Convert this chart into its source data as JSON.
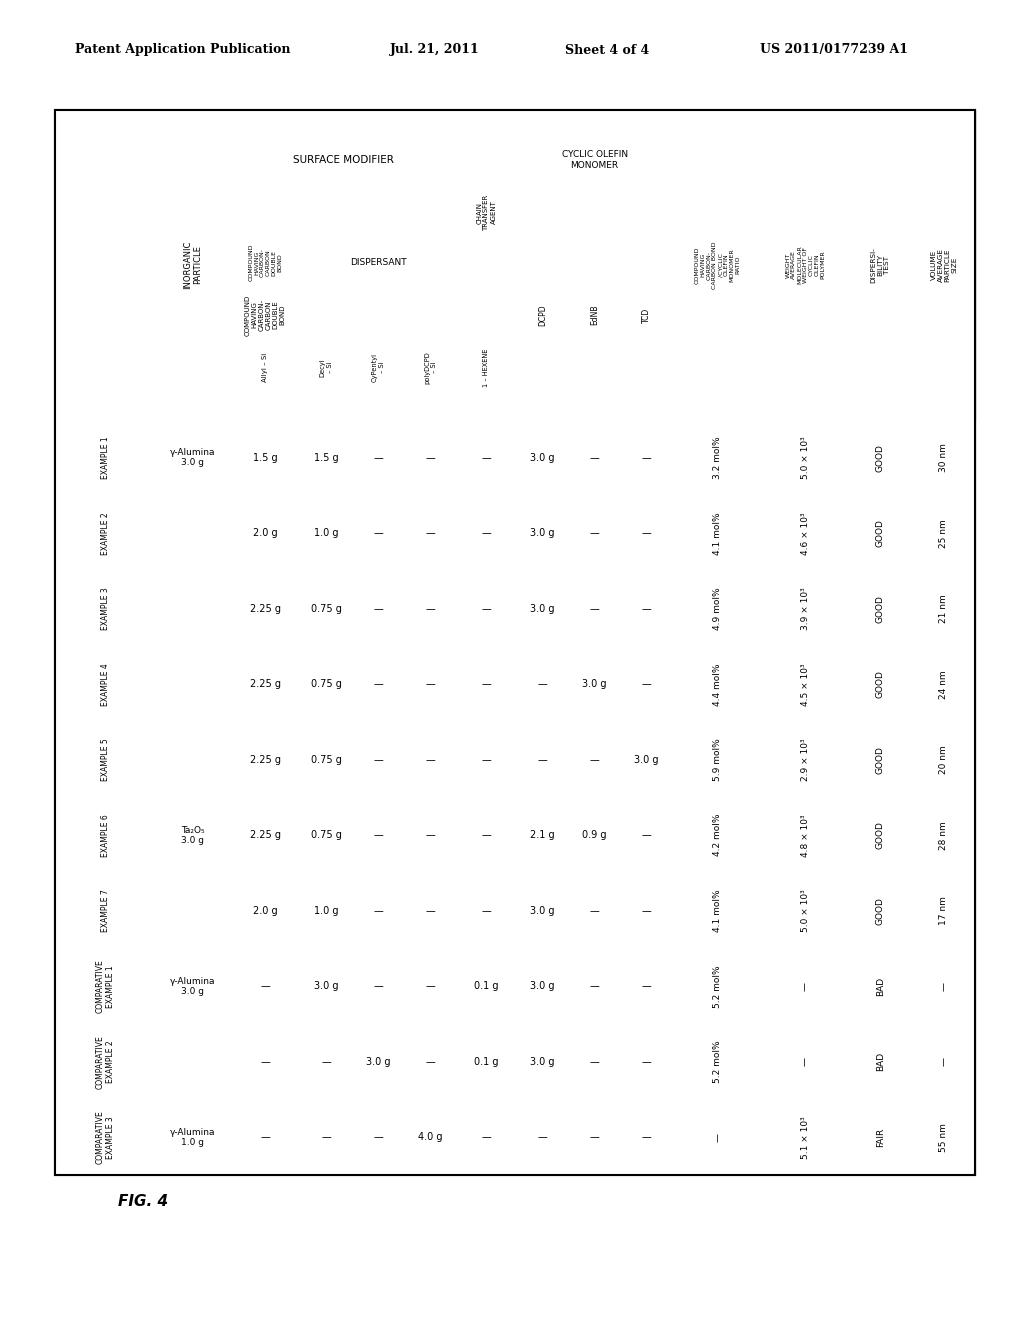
{
  "header_line1": "Patent Application Publication",
  "header_date": "Jul. 21, 2011",
  "header_sheet": "Sheet 4 of 4",
  "header_patent": "US 2011/0177239 A1",
  "fig_label": "FIG. 4",
  "rows": [
    {
      "label": "EXAMPLE 1",
      "inorganic": "γ-Alumina\n3.0 g",
      "allyl_si": "1.5 g",
      "decyl_si": "1.5 g",
      "cypentyl_si": "—",
      "polydcpd_si": "—",
      "chain_transfer": "—",
      "dcpd": "3.0 g",
      "ednb": "—",
      "tcd": "—",
      "ratio": "3.2 mol%",
      "mw": "5.0 × 10³",
      "dispersibility": "GOOD",
      "particle_size": "30 nm"
    },
    {
      "label": "EXAMPLE 2",
      "inorganic": "",
      "allyl_si": "2.0 g",
      "decyl_si": "1.0 g",
      "cypentyl_si": "—",
      "polydcpd_si": "—",
      "chain_transfer": "—",
      "dcpd": "3.0 g",
      "ednb": "—",
      "tcd": "—",
      "ratio": "4.1 mol%",
      "mw": "4.6 × 10³",
      "dispersibility": "GOOD",
      "particle_size": "25 nm"
    },
    {
      "label": "EXAMPLE 3",
      "inorganic": "",
      "allyl_si": "2.25 g",
      "decyl_si": "0.75 g",
      "cypentyl_si": "—",
      "polydcpd_si": "—",
      "chain_transfer": "—",
      "dcpd": "3.0 g",
      "ednb": "—",
      "tcd": "—",
      "ratio": "4.9 mol%",
      "mw": "3.9 × 10³",
      "dispersibility": "GOOD",
      "particle_size": "21 nm"
    },
    {
      "label": "EXAMPLE 4",
      "inorganic": "",
      "allyl_si": "2.25 g",
      "decyl_si": "0.75 g",
      "cypentyl_si": "—",
      "polydcpd_si": "—",
      "chain_transfer": "—",
      "dcpd": "—",
      "ednb": "3.0 g",
      "tcd": "—",
      "ratio": "4.4 mol%",
      "mw": "4.5 × 10³",
      "dispersibility": "GOOD",
      "particle_size": "24 nm"
    },
    {
      "label": "EXAMPLE 5",
      "inorganic": "",
      "allyl_si": "2.25 g",
      "decyl_si": "0.75 g",
      "cypentyl_si": "—",
      "polydcpd_si": "—",
      "chain_transfer": "—",
      "dcpd": "—",
      "ednb": "—",
      "tcd": "3.0 g",
      "ratio": "5.9 mol%",
      "mw": "2.9 × 10³",
      "dispersibility": "GOOD",
      "particle_size": "20 nm"
    },
    {
      "label": "EXAMPLE 6",
      "inorganic": "Ta₂O₅\n3.0 g",
      "allyl_si": "2.25 g",
      "decyl_si": "0.75 g",
      "cypentyl_si": "—",
      "polydcpd_si": "—",
      "chain_transfer": "—",
      "dcpd": "2.1 g",
      "ednb": "0.9 g",
      "tcd": "—",
      "ratio": "4.2 mol%",
      "mw": "4.8 × 10³",
      "dispersibility": "GOOD",
      "particle_size": "28 nm"
    },
    {
      "label": "EXAMPLE 7",
      "inorganic": "",
      "allyl_si": "2.0 g",
      "decyl_si": "1.0 g",
      "cypentyl_si": "—",
      "polydcpd_si": "—",
      "chain_transfer": "—",
      "dcpd": "3.0 g",
      "ednb": "—",
      "tcd": "—",
      "ratio": "4.1 mol%",
      "mw": "5.0 × 10³",
      "dispersibility": "GOOD",
      "particle_size": "17 nm"
    },
    {
      "label": "COMPARATIVE\nEXAMPLE 1",
      "inorganic": "γ-Alumina\n3.0 g",
      "allyl_si": "—",
      "decyl_si": "3.0 g",
      "cypentyl_si": "—",
      "polydcpd_si": "—",
      "chain_transfer": "0.1 g",
      "dcpd": "3.0 g",
      "ednb": "—",
      "tcd": "—",
      "ratio": "5.2 mol%",
      "mw": "—",
      "dispersibility": "BAD",
      "particle_size": "—"
    },
    {
      "label": "COMPARATIVE\nEXAMPLE 2",
      "inorganic": "",
      "allyl_si": "—",
      "decyl_si": "—",
      "cypentyl_si": "3.0 g",
      "polydcpd_si": "—",
      "chain_transfer": "0.1 g",
      "dcpd": "3.0 g",
      "ednb": "—",
      "tcd": "—",
      "ratio": "5.2 mol%",
      "mw": "—",
      "dispersibility": "BAD",
      "particle_size": "—"
    },
    {
      "label": "COMPARATIVE\nEXAMPLE 3",
      "inorganic": "γ-Alumina\n1.0 g",
      "allyl_si": "—",
      "decyl_si": "—",
      "cypentyl_si": "—",
      "polydcpd_si": "4.0 g",
      "chain_transfer": "—",
      "dcpd": "—",
      "ednb": "—",
      "tcd": "—",
      "ratio": "—",
      "mw": "5.1 × 10³",
      "dispersibility": "FAIR",
      "particle_size": "55 nm"
    }
  ]
}
